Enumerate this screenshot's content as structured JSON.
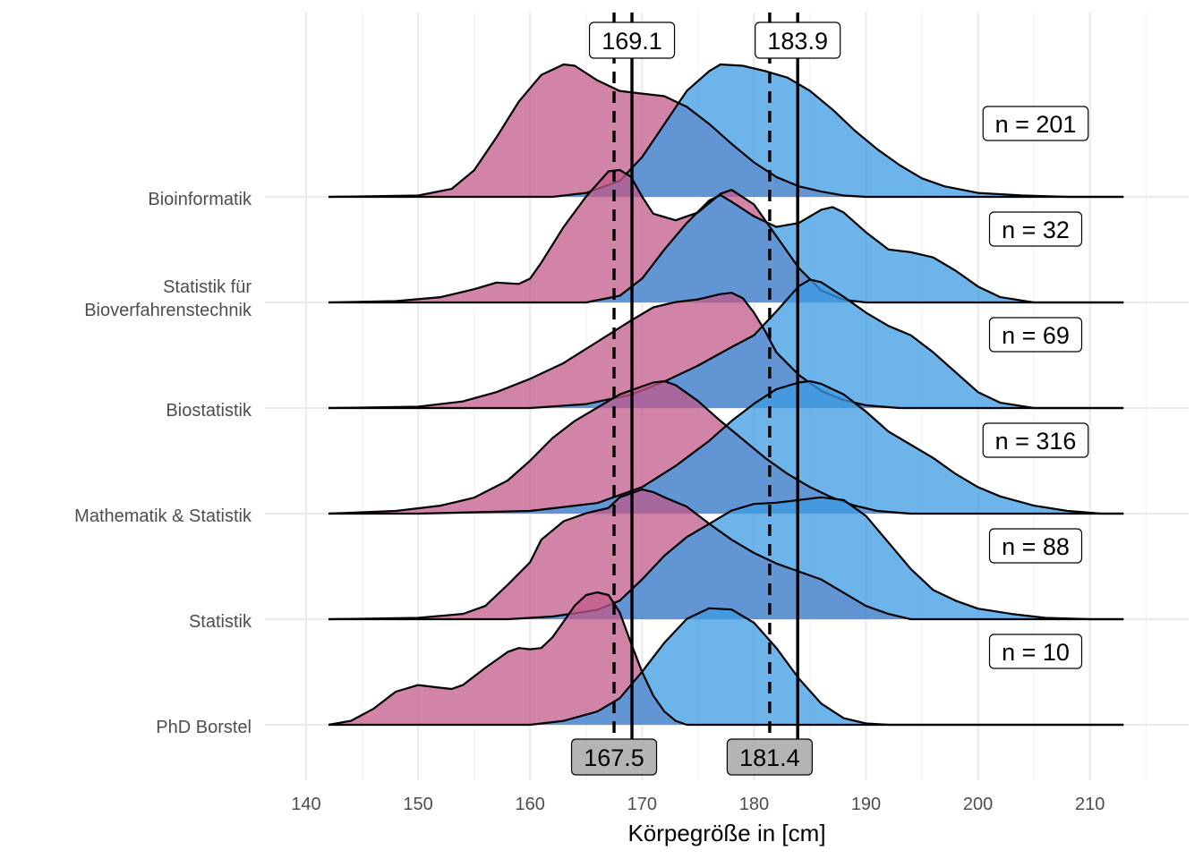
{
  "chart_data": {
    "type": "ridgeline",
    "title": "",
    "xlabel": "Körpegröße in [cm]",
    "ylabel": "",
    "xlim": [
      142,
      213
    ],
    "x_ticks": [
      140,
      150,
      160,
      170,
      180,
      190,
      200,
      210
    ],
    "grid": true,
    "colors": {
      "female": "#c2598b",
      "male": "#3c9be3",
      "overlap": "#9e64a6",
      "box_gray": "#b4b4b4"
    },
    "reference_lines": [
      {
        "x": 169.1,
        "style": "solid",
        "label": "169.1",
        "label_position": "top"
      },
      {
        "x": 183.9,
        "style": "solid",
        "label": "183.9",
        "label_position": "top"
      },
      {
        "x": 167.5,
        "style": "dashed",
        "label": "167.5",
        "label_position": "bottom"
      },
      {
        "x": 181.4,
        "style": "dashed",
        "label": "181.4",
        "label_position": "bottom"
      }
    ],
    "categories": [
      {
        "label": "Bioinformatik",
        "n_label": "n = 201",
        "female": [
          [
            142,
            0
          ],
          [
            150,
            0.01
          ],
          [
            153,
            0.06
          ],
          [
            155,
            0.2
          ],
          [
            157,
            0.45
          ],
          [
            159,
            0.72
          ],
          [
            161,
            0.92
          ],
          [
            163,
            1.0
          ],
          [
            164,
            0.99
          ],
          [
            166,
            0.88
          ],
          [
            168,
            0.8
          ],
          [
            170,
            0.78
          ],
          [
            172,
            0.76
          ],
          [
            174,
            0.68
          ],
          [
            176,
            0.55
          ],
          [
            178,
            0.4
          ],
          [
            180,
            0.26
          ],
          [
            182,
            0.15
          ],
          [
            184,
            0.08
          ],
          [
            186,
            0.04
          ],
          [
            188,
            0.01
          ],
          [
            190,
            0
          ]
        ],
        "male": [
          [
            162,
            0
          ],
          [
            165,
            0.03
          ],
          [
            168,
            0.12
          ],
          [
            170,
            0.3
          ],
          [
            172,
            0.55
          ],
          [
            174,
            0.8
          ],
          [
            176,
            0.95
          ],
          [
            177,
            1.0
          ],
          [
            179,
            0.99
          ],
          [
            181,
            0.95
          ],
          [
            183,
            0.9
          ],
          [
            185,
            0.8
          ],
          [
            187,
            0.66
          ],
          [
            189,
            0.5
          ],
          [
            191,
            0.36
          ],
          [
            193,
            0.24
          ],
          [
            195,
            0.14
          ],
          [
            197,
            0.08
          ],
          [
            200,
            0.03
          ],
          [
            204,
            0.01
          ],
          [
            208,
            0
          ],
          [
            213,
            0
          ]
        ]
      },
      {
        "label": "Statistik für\nBioverfahrenstechnik",
        "n_label": "n = 32",
        "female": [
          [
            142,
            0
          ],
          [
            148,
            0.01
          ],
          [
            152,
            0.04
          ],
          [
            155,
            0.1
          ],
          [
            157,
            0.15
          ],
          [
            159,
            0.14
          ],
          [
            160,
            0.18
          ],
          [
            161,
            0.3
          ],
          [
            163,
            0.57
          ],
          [
            165,
            0.8
          ],
          [
            167,
            0.99
          ],
          [
            168,
            1.0
          ],
          [
            169,
            0.95
          ],
          [
            170,
            0.8
          ],
          [
            171,
            0.67
          ],
          [
            173,
            0.62
          ],
          [
            175,
            0.68
          ],
          [
            177,
            0.82
          ],
          [
            178,
            0.85
          ],
          [
            180,
            0.74
          ],
          [
            182,
            0.5
          ],
          [
            184,
            0.26
          ],
          [
            186,
            0.09
          ],
          [
            188,
            0.02
          ],
          [
            190,
            0
          ]
        ],
        "male": [
          [
            165,
            0
          ],
          [
            168,
            0.05
          ],
          [
            170,
            0.18
          ],
          [
            172,
            0.4
          ],
          [
            174,
            0.6
          ],
          [
            176,
            0.77
          ],
          [
            177,
            0.81
          ],
          [
            178,
            0.76
          ],
          [
            180,
            0.65
          ],
          [
            182,
            0.57
          ],
          [
            184,
            0.6
          ],
          [
            186,
            0.7
          ],
          [
            187,
            0.72
          ],
          [
            188,
            0.68
          ],
          [
            190,
            0.53
          ],
          [
            192,
            0.4
          ],
          [
            194,
            0.38
          ],
          [
            196,
            0.34
          ],
          [
            198,
            0.24
          ],
          [
            200,
            0.12
          ],
          [
            202,
            0.04
          ],
          [
            205,
            0
          ],
          [
            213,
            0
          ]
        ]
      },
      {
        "label": "Biostatistik",
        "n_label": "n = 69",
        "female": [
          [
            142,
            0
          ],
          [
            150,
            0.01
          ],
          [
            154,
            0.05
          ],
          [
            157,
            0.12
          ],
          [
            160,
            0.22
          ],
          [
            163,
            0.34
          ],
          [
            166,
            0.5
          ],
          [
            169,
            0.66
          ],
          [
            171,
            0.76
          ],
          [
            173,
            0.8
          ],
          [
            175,
            0.82
          ],
          [
            177,
            0.86
          ],
          [
            178,
            0.87
          ],
          [
            179,
            0.83
          ],
          [
            180,
            0.72
          ],
          [
            181,
            0.58
          ],
          [
            182,
            0.42
          ],
          [
            184,
            0.25
          ],
          [
            186,
            0.13
          ],
          [
            188,
            0.06
          ],
          [
            190,
            0.02
          ],
          [
            193,
            0
          ]
        ],
        "male": [
          [
            160,
            0
          ],
          [
            165,
            0.03
          ],
          [
            169,
            0.1
          ],
          [
            172,
            0.2
          ],
          [
            175,
            0.32
          ],
          [
            178,
            0.46
          ],
          [
            180,
            0.55
          ],
          [
            182,
            0.73
          ],
          [
            184,
            0.92
          ],
          [
            185,
            0.97
          ],
          [
            186,
            0.95
          ],
          [
            188,
            0.84
          ],
          [
            190,
            0.72
          ],
          [
            192,
            0.62
          ],
          [
            194,
            0.55
          ],
          [
            196,
            0.42
          ],
          [
            198,
            0.27
          ],
          [
            200,
            0.12
          ],
          [
            202,
            0.04
          ],
          [
            205,
            0
          ],
          [
            213,
            0
          ]
        ]
      },
      {
        "label": "Mathematik & Statistik",
        "n_label": "n = 316",
        "female": [
          [
            142,
            0
          ],
          [
            148,
            0.02
          ],
          [
            152,
            0.06
          ],
          [
            155,
            0.12
          ],
          [
            158,
            0.25
          ],
          [
            160,
            0.4
          ],
          [
            162,
            0.57
          ],
          [
            164,
            0.7
          ],
          [
            166,
            0.8
          ],
          [
            168,
            0.9
          ],
          [
            170,
            0.96
          ],
          [
            171,
            0.99
          ],
          [
            172,
            1.0
          ],
          [
            173,
            0.97
          ],
          [
            175,
            0.85
          ],
          [
            177,
            0.7
          ],
          [
            179,
            0.56
          ],
          [
            181,
            0.42
          ],
          [
            183,
            0.3
          ],
          [
            185,
            0.2
          ],
          [
            187,
            0.12
          ],
          [
            189,
            0.06
          ],
          [
            191,
            0.02
          ],
          [
            194,
            0
          ]
        ],
        "male": [
          [
            150,
            0
          ],
          [
            160,
            0.02
          ],
          [
            166,
            0.08
          ],
          [
            170,
            0.2
          ],
          [
            173,
            0.36
          ],
          [
            176,
            0.55
          ],
          [
            178,
            0.7
          ],
          [
            180,
            0.83
          ],
          [
            182,
            0.94
          ],
          [
            184,
            0.99
          ],
          [
            185,
            1.0
          ],
          [
            186,
            0.98
          ],
          [
            188,
            0.9
          ],
          [
            190,
            0.77
          ],
          [
            192,
            0.62
          ],
          [
            194,
            0.52
          ],
          [
            196,
            0.42
          ],
          [
            198,
            0.3
          ],
          [
            200,
            0.2
          ],
          [
            202,
            0.13
          ],
          [
            205,
            0.06
          ],
          [
            208,
            0.02
          ],
          [
            211,
            0
          ],
          [
            213,
            0
          ]
        ]
      },
      {
        "label": "Statistik",
        "n_label": "n = 88",
        "female": [
          [
            142,
            0
          ],
          [
            150,
            0.01
          ],
          [
            154,
            0.04
          ],
          [
            156,
            0.1
          ],
          [
            158,
            0.26
          ],
          [
            160,
            0.43
          ],
          [
            161,
            0.6
          ],
          [
            163,
            0.74
          ],
          [
            165,
            0.8
          ],
          [
            167,
            0.84
          ],
          [
            168,
            0.92
          ],
          [
            170,
            0.98
          ],
          [
            171,
            0.96
          ],
          [
            172,
            0.92
          ],
          [
            174,
            0.85
          ],
          [
            176,
            0.72
          ],
          [
            178,
            0.6
          ],
          [
            180,
            0.5
          ],
          [
            182,
            0.42
          ],
          [
            184,
            0.36
          ],
          [
            186,
            0.3
          ],
          [
            188,
            0.2
          ],
          [
            190,
            0.1
          ],
          [
            192,
            0.04
          ],
          [
            194,
            0
          ]
        ],
        "male": [
          [
            158,
            0
          ],
          [
            162,
            0.02
          ],
          [
            166,
            0.07
          ],
          [
            168,
            0.14
          ],
          [
            170,
            0.3
          ],
          [
            172,
            0.48
          ],
          [
            174,
            0.62
          ],
          [
            176,
            0.72
          ],
          [
            178,
            0.82
          ],
          [
            180,
            0.87
          ],
          [
            182,
            0.88
          ],
          [
            184,
            0.9
          ],
          [
            186,
            0.92
          ],
          [
            188,
            0.9
          ],
          [
            190,
            0.78
          ],
          [
            192,
            0.58
          ],
          [
            194,
            0.38
          ],
          [
            196,
            0.22
          ],
          [
            198,
            0.14
          ],
          [
            200,
            0.08
          ],
          [
            203,
            0.04
          ],
          [
            206,
            0.01
          ],
          [
            210,
            0
          ],
          [
            213,
            0
          ]
        ]
      },
      {
        "label": "PhD Borstel",
        "n_label": "n = 10",
        "female": [
          [
            142,
            0
          ],
          [
            144,
            0.03
          ],
          [
            146,
            0.12
          ],
          [
            148,
            0.25
          ],
          [
            150,
            0.3
          ],
          [
            152,
            0.28
          ],
          [
            153,
            0.27
          ],
          [
            154,
            0.3
          ],
          [
            156,
            0.43
          ],
          [
            158,
            0.55
          ],
          [
            159,
            0.58
          ],
          [
            160,
            0.57
          ],
          [
            161,
            0.58
          ],
          [
            162,
            0.66
          ],
          [
            163,
            0.78
          ],
          [
            164,
            0.9
          ],
          [
            165,
            0.98
          ],
          [
            166,
            1.0
          ],
          [
            167,
            0.98
          ],
          [
            168,
            0.85
          ],
          [
            169,
            0.62
          ],
          [
            170,
            0.4
          ],
          [
            171,
            0.22
          ],
          [
            172,
            0.1
          ],
          [
            173,
            0.03
          ],
          [
            174,
            0
          ]
        ],
        "male": [
          [
            160,
            0
          ],
          [
            163,
            0.03
          ],
          [
            166,
            0.1
          ],
          [
            168,
            0.2
          ],
          [
            170,
            0.4
          ],
          [
            172,
            0.62
          ],
          [
            174,
            0.8
          ],
          [
            176,
            0.88
          ],
          [
            178,
            0.87
          ],
          [
            180,
            0.77
          ],
          [
            182,
            0.58
          ],
          [
            184,
            0.35
          ],
          [
            186,
            0.16
          ],
          [
            188,
            0.05
          ],
          [
            190,
            0.01
          ],
          [
            192,
            0
          ],
          [
            213,
            0
          ]
        ]
      }
    ]
  }
}
